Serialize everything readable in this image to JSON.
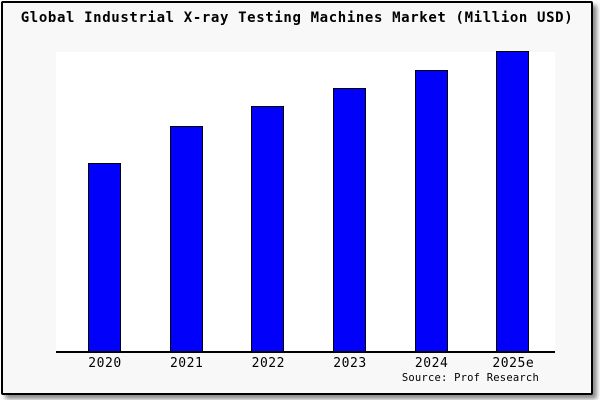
{
  "window": {
    "title": "Global Industrial X-ray Testing Machines Market (Million USD)"
  },
  "chart_data": {
    "type": "bar",
    "title": "Global Industrial X-ray Testing Machines Market (Million USD)",
    "categories": [
      "2020",
      "2021",
      "2022",
      "2023",
      "2024",
      "2025e"
    ],
    "values": [
      62.5,
      75,
      81.5,
      87.5,
      93.5,
      100
    ],
    "xlabel": "",
    "ylabel": "",
    "ylim": [
      0,
      100
    ],
    "y_axis_visible": false,
    "grid": false,
    "legend": "none",
    "units": "Million USD",
    "bar_color": "#0000fb",
    "bar_border_color": "#000000",
    "value_note": "y-axis has no tick labels; values are relative estimates normalized to 2025e = 100"
  },
  "footer": {
    "source": "Source: Prof Research"
  }
}
